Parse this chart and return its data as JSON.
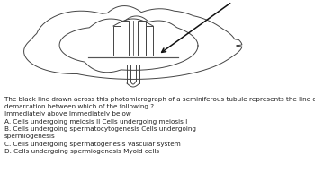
{
  "bg_color": "#ffffff",
  "question_text": "The black line drawn across this photomicrograph of a seminiferous tubule represents the line of\ndemarcation between which of the following ?\nImmediately above Immediately below\nA. Cells undergoing meiosis II Cells undergoing meiosis I\nB. Cells undergoing spermatocytogenesis Cells undergoing\nspermiogenesis\nC. Cells undergoing spermatogenesis Vascular system\nD. Cells undergoing spermiogenesis Myoid cells",
  "font_size_question": 5.2,
  "fig_width": 3.5,
  "fig_height": 2.03,
  "dpi": 100,
  "tubule_color": "#444444",
  "arrow_color": "#111111",
  "line_color": "#555555"
}
